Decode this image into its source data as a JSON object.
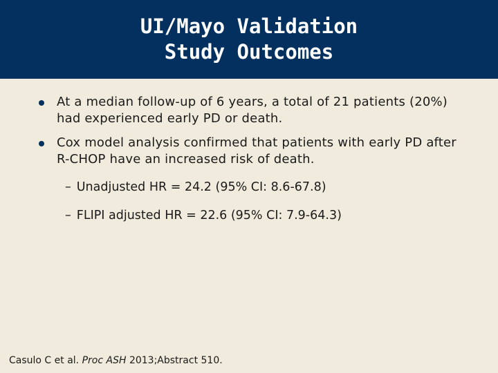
{
  "slide": {
    "title_line1": "UI/Mayo Validation",
    "title_line2": "Study Outcomes",
    "bullets": [
      {
        "text": "At a median follow-up of 6 years, a total of 21 patients (20%) had experienced early PD or death."
      },
      {
        "text": "Cox model analysis confirmed that patients with early PD after R-CHOP have an increased risk of death."
      }
    ],
    "subbullets": [
      {
        "dash": "–",
        "text": "Unadjusted HR = 24.2 (95% CI: 8.6-67.8)"
      },
      {
        "dash": "–",
        "text": "FLIPI adjusted HR = 22.6 (95% CI: 7.9-64.3)"
      }
    ],
    "citation": {
      "authors": "Casulo C et al.",
      "journal": "Proc ASH",
      "rest": "2013;Abstract 510."
    },
    "colors": {
      "header_bg": "#04305f",
      "body_bg": "#f0ebdc",
      "bullet_dot": "#04305f"
    }
  }
}
